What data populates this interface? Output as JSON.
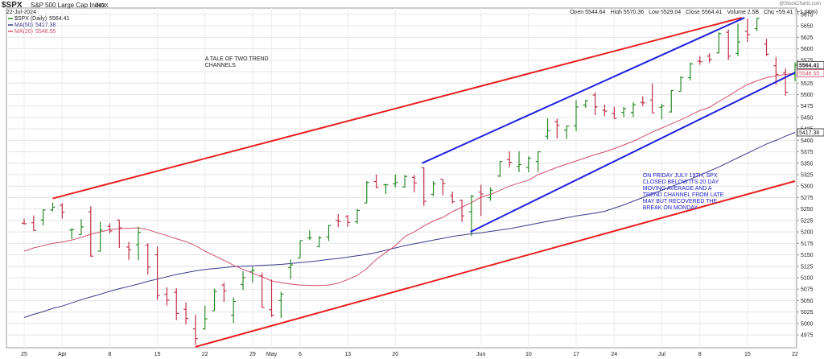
{
  "chart_data": {
    "type": "ohlc",
    "symbol": "$SPX",
    "title": "S&P 500 Large Cap Index",
    "exchange": "INDX",
    "date": "22-Jul-2024",
    "watermark": "@StockCharts.com",
    "quote": [
      "Open 5544.64",
      "High 5570.36",
      "Low 5529.04",
      "Close 5564.41",
      "Volume 2.5B",
      "Chg +59.41 (+1.08%)"
    ],
    "categories": [
      "25",
      null,
      null,
      null,
      "Apr",
      null,
      null,
      null,
      null,
      "8",
      null,
      null,
      null,
      null,
      "15",
      null,
      null,
      null,
      null,
      "22",
      null,
      null,
      null,
      null,
      "29",
      null,
      "May",
      null,
      null,
      "6",
      null,
      null,
      null,
      null,
      "13",
      null,
      null,
      null,
      null,
      "20",
      null,
      null,
      null,
      null,
      null,
      null,
      null,
      null,
      "Jun",
      null,
      null,
      null,
      null,
      "10",
      null,
      null,
      null,
      null,
      "17",
      null,
      null,
      null,
      "24",
      null,
      null,
      null,
      null,
      "Jul",
      null,
      null,
      null,
      "8",
      null,
      null,
      null,
      null,
      "15",
      null,
      null,
      null,
      null,
      "22"
    ],
    "ylim": [
      4947,
      5689
    ],
    "yticks": [
      4975,
      5000,
      5025,
      5050,
      5075,
      5100,
      5125,
      5150,
      5175,
      5200,
      5225,
      5250,
      5275,
      5300,
      5325,
      5350,
      5375,
      5400,
      5425,
      5450,
      5475,
      5500,
      5525,
      5550,
      5575,
      5600,
      5625,
      5650,
      5675
    ],
    "grid": true,
    "series": [
      {
        "name": "$SPX (Daily)",
        "color": "#2a8a2a",
        "down_color": "#c0304a",
        "last_label": "5564.41",
        "open": [
          5219,
          5220,
          5226,
          5248,
          5258,
          5204,
          5194,
          5244,
          5158,
          5212,
          5226,
          5167,
          5172,
          5171,
          5150,
          5064,
          5068,
          5031,
          4988,
          4988,
          5028,
          5084,
          5018,
          5085,
          5114,
          5104,
          5030,
          5050,
          5122,
          5143,
          5187,
          5168,
          5189,
          5225,
          5234,
          5222,
          5263,
          5310,
          5303,
          5305,
          5298,
          5319,
          5340,
          5282,
          5315,
          5279,
          5269,
          5244,
          5287,
          5275,
          5322,
          5358,
          5343,
          5341,
          5354,
          5409,
          5441,
          5422,
          5432,
          5477,
          5499,
          5466,
          5459,
          5461,
          5461,
          5483,
          5488,
          5472,
          5462,
          5507,
          5537,
          5573,
          5584,
          5591,
          5636,
          5590,
          5638,
          5644,
          5610,
          5563,
          5547,
          5544.64
        ],
        "high": [
          5229,
          5236,
          5249,
          5264,
          5263,
          5208,
          5228,
          5256,
          5222,
          5219,
          5226,
          5178,
          5211,
          5175,
          5168,
          5079,
          5077,
          5046,
          5019,
          5039,
          5076,
          5089,
          5057,
          5114,
          5124,
          5111,
          5096,
          5069,
          5140,
          5181,
          5203,
          5191,
          5215,
          5239,
          5237,
          5250,
          5311,
          5325,
          5305,
          5325,
          5324,
          5324,
          5341,
          5311,
          5315,
          5288,
          5270,
          5281,
          5303,
          5297,
          5354,
          5376,
          5376,
          5365,
          5376,
          5448,
          5447,
          5432,
          5488,
          5488,
          5505,
          5478,
          5473,
          5473,
          5483,
          5496,
          5524,
          5480,
          5510,
          5540,
          5570,
          5584,
          5590,
          5636,
          5642,
          5655,
          5666,
          5667,
          5622,
          5582,
          5557,
          5570.36
        ],
        "low": [
          5216,
          5203,
          5214,
          5245,
          5229,
          5184,
          5194,
          5146,
          5157,
          5197,
          5165,
          5139,
          5138,
          5107,
          5052,
          5039,
          5007,
          4998,
          4953,
          4987,
          5028,
          5047,
          5001,
          5073,
          5089,
          5035,
          5014,
          5012,
          5097,
          5143,
          5182,
          5166,
          5180,
          5210,
          5211,
          5218,
          5263,
          5297,
          5283,
          5298,
          5297,
          5286,
          5257,
          5278,
          5280,
          5262,
          5222,
          5191,
          5235,
          5268,
          5320,
          5341,
          5331,
          5330,
          5331,
          5402,
          5404,
          5403,
          5420,
          5471,
          5455,
          5453,
          5447,
          5451,
          5451,
          5475,
          5460,
          5446,
          5461,
          5507,
          5531,
          5565,
          5570,
          5590,
          5576,
          5584,
          5615,
          5639,
          5584,
          5522,
          5497,
          5529.04
        ],
        "close": [
          5218,
          5203,
          5248,
          5254,
          5243,
          5205,
          5211,
          5147,
          5204,
          5202,
          5209,
          5161,
          5199,
          5123,
          5061,
          5051,
          5022,
          5011,
          4967,
          5010,
          5070,
          5071,
          5048,
          5100,
          5116,
          5035,
          5018,
          5064,
          5128,
          5181,
          5187,
          5187,
          5214,
          5223,
          5221,
          5247,
          5308,
          5297,
          5303,
          5308,
          5321,
          5307,
          5267,
          5305,
          5306,
          5266,
          5235,
          5278,
          5283,
          5291,
          5354,
          5352,
          5347,
          5361,
          5375,
          5421,
          5433,
          5431,
          5473,
          5487,
          5473,
          5464,
          5448,
          5469,
          5478,
          5482,
          5460,
          5475,
          5509,
          5537,
          5567,
          5572,
          5577,
          5633,
          5584,
          5615,
          5631,
          5667,
          5588,
          5544,
          5505,
          5564.41
        ]
      },
      {
        "name": "MA(50)",
        "color": "#3c3a8c",
        "last_label": "5417.38",
        "values": [
          5013,
          5020,
          5026,
          5033,
          5038,
          5045,
          5052,
          5058,
          5064,
          5070,
          5076,
          5081,
          5086,
          5092,
          5097,
          5102,
          5107,
          5111,
          5115,
          5118,
          5120,
          5122,
          5124,
          5125,
          5126,
          5127,
          5128,
          5129,
          5131,
          5133,
          5135,
          5137,
          5140,
          5142,
          5145,
          5148,
          5151,
          5155,
          5160,
          5165,
          5170,
          5174,
          5178,
          5182,
          5186,
          5190,
          5193,
          5196,
          5198,
          5201,
          5204,
          5207,
          5211,
          5215,
          5219,
          5223,
          5227,
          5231,
          5235,
          5238,
          5241,
          5245,
          5252,
          5259,
          5267,
          5275,
          5283,
          5291,
          5299,
          5307,
          5315,
          5324,
          5333,
          5342,
          5352,
          5362,
          5372,
          5382,
          5392,
          5400,
          5409,
          5417.38
        ]
      },
      {
        "name": "MA(20)",
        "color": "#d0506a",
        "last_label": "5546.55",
        "values": [
          5158,
          5165,
          5170,
          5175,
          5178,
          5182,
          5188,
          5195,
          5200,
          5205,
          5207,
          5208,
          5209,
          5205,
          5198,
          5192,
          5185,
          5179,
          5170,
          5158,
          5148,
          5138,
          5127,
          5118,
          5110,
          5102,
          5093,
          5089,
          5086,
          5084,
          5083,
          5083,
          5084,
          5088,
          5096,
          5105,
          5120,
          5140,
          5155,
          5170,
          5190,
          5200,
          5213,
          5224,
          5232,
          5244,
          5254,
          5264,
          5276,
          5282,
          5291,
          5300,
          5307,
          5313,
          5325,
          5333,
          5341,
          5348,
          5355,
          5362,
          5369,
          5375,
          5382,
          5390,
          5398,
          5408,
          5418,
          5427,
          5436,
          5445,
          5455,
          5465,
          5472,
          5485,
          5497,
          5510,
          5522,
          5530,
          5537,
          5541,
          5544,
          5546.55
        ]
      }
    ],
    "trend_lines": [
      {
        "color": "#e82020",
        "x": [
          3,
          75.4
        ],
        "y": [
          5273,
          5668
        ]
      },
      {
        "color": "#e82020",
        "x": [
          18,
          81
        ],
        "y": [
          4949,
          5311
        ]
      },
      {
        "color": "#2020e0",
        "x": [
          41.8,
          75.7
        ],
        "y": [
          5350,
          5668
        ]
      },
      {
        "color": "#2020e0",
        "x": [
          46.9,
          81
        ],
        "y": [
          5200,
          5548
        ]
      }
    ],
    "annotations": [
      {
        "color": "#222222",
        "x": 19,
        "y": 5575,
        "lines": [
          "A TALE OF TWO TREND",
          "CHANNELS"
        ]
      },
      {
        "color": "#2020d0",
        "x": 65,
        "y": 5320,
        "lines": [
          "ON FRIDAY JULY 19TH, SPX",
          "CLOSED BELOW ITS 20 DAY",
          "MOVING AVERAGE AND A",
          "TREND CHANNEL FROM LATE",
          "MAY BUT RECOVERED THE",
          "BREAK ON MONDAY"
        ]
      }
    ]
  }
}
